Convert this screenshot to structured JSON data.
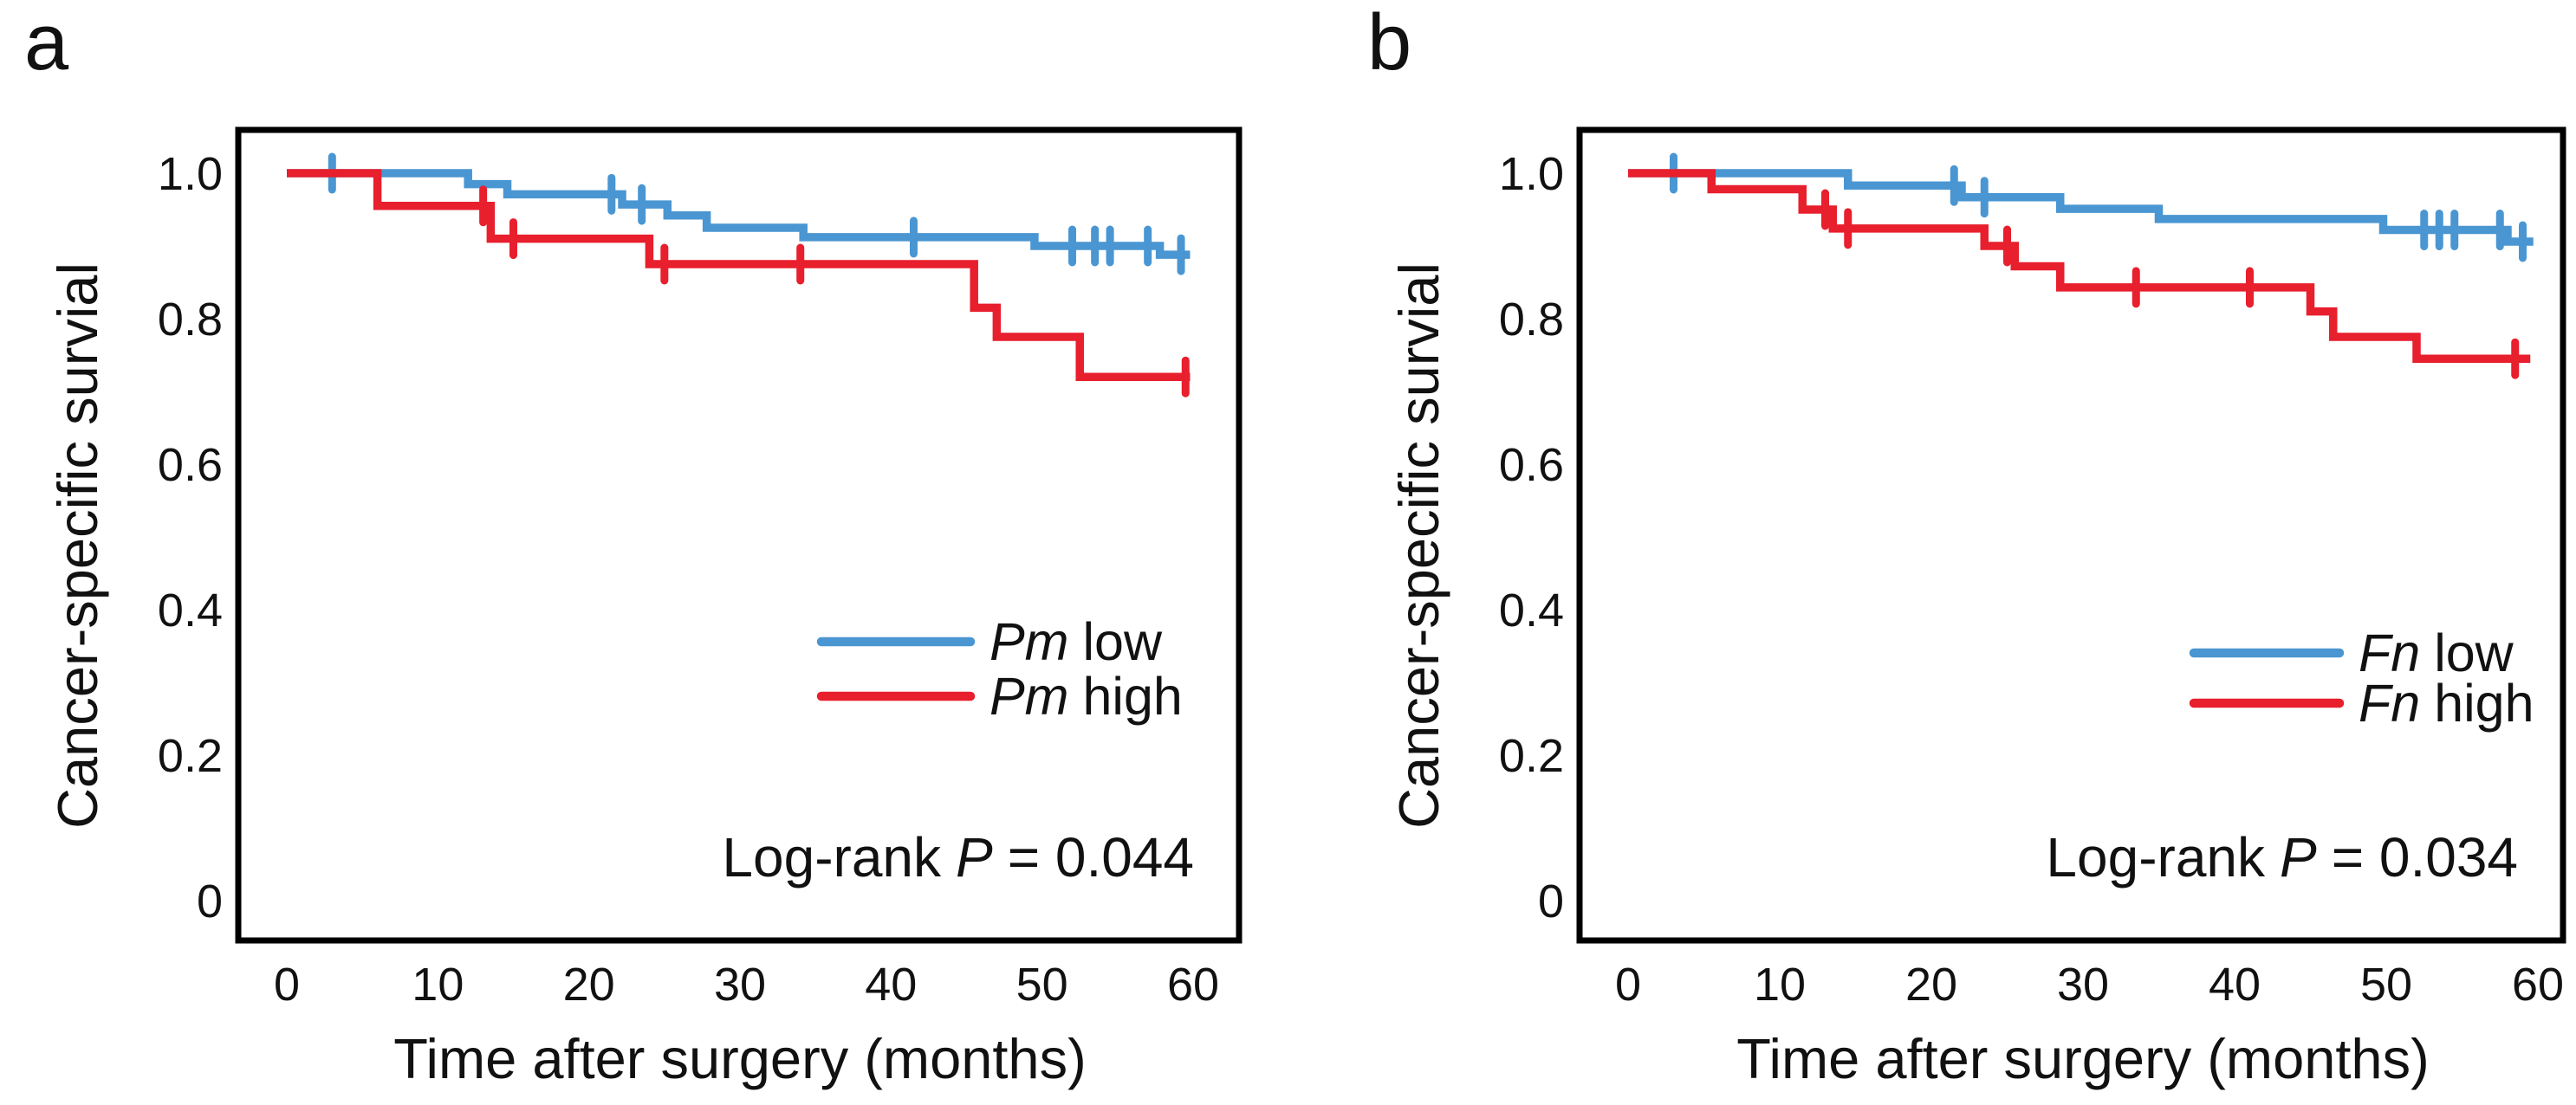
{
  "figure": {
    "colors": {
      "low_series": "#4a96d2",
      "high_series": "#e81f2d",
      "axis": "#000000",
      "text": "#111111",
      "background": "#ffffff"
    }
  },
  "chart_data": [
    {
      "type": "line",
      "subtype": "kaplan-meier-step",
      "panel_letter": "a",
      "title": "",
      "xlabel": "Time after surgery (months)",
      "ylabel": "Cancer-specific survial",
      "xlim": [
        0,
        60
      ],
      "ylim": [
        0,
        1.05
      ],
      "grid": false,
      "x_ticks": [
        "0",
        "10",
        "20",
        "30",
        "40",
        "50",
        "60"
      ],
      "x_tick_values": [
        0,
        10,
        20,
        30,
        40,
        50,
        60
      ],
      "y_tick_labels": [
        "1.0",
        "0.8",
        "0.6",
        "0.4",
        "0.2",
        "0"
      ],
      "y_tick_values": [
        1.0,
        0.8,
        0.6,
        0.4,
        0.2,
        0
      ],
      "annotation": {
        "prefix": "Log-rank",
        "p_symbol": "P",
        "value": "= 0.044"
      },
      "legend_position": "inside-right-middle",
      "legend": [
        {
          "gene": "Pm",
          "level": "low",
          "color_key": "low_series"
        },
        {
          "gene": "Pm",
          "level": "high",
          "color_key": "high_series"
        }
      ],
      "series": [
        {
          "name": "Pm low",
          "color_key": "low_series",
          "steps": [
            [
              0,
              1.0
            ],
            [
              12,
              0.985
            ],
            [
              14.6,
              0.971
            ],
            [
              22.2,
              0.957
            ],
            [
              25.2,
              0.942
            ],
            [
              27.8,
              0.925
            ],
            [
              34.2,
              0.912
            ],
            [
              49.5,
              0.9
            ],
            [
              57.8,
              0.888
            ]
          ],
          "censors": [
            [
              3,
              1.0
            ],
            [
              21.5,
              0.971
            ],
            [
              23.5,
              0.957
            ],
            [
              41.5,
              0.912
            ],
            [
              52,
              0.9
            ],
            [
              53.5,
              0.9
            ],
            [
              54.5,
              0.9
            ],
            [
              57,
              0.9
            ],
            [
              59.2,
              0.888
            ]
          ],
          "end_time": 59.8
        },
        {
          "name": "Pm high",
          "color_key": "high_series",
          "steps": [
            [
              0,
              1.0
            ],
            [
              6,
              0.955
            ],
            [
              13.5,
              0.91
            ],
            [
              24,
              0.875
            ],
            [
              45.5,
              0.815
            ],
            [
              47,
              0.775
            ],
            [
              52.5,
              0.72
            ]
          ],
          "censors": [
            [
              13,
              0.955
            ],
            [
              15,
              0.91
            ],
            [
              25,
              0.875
            ],
            [
              34,
              0.875
            ],
            [
              59.5,
              0.72
            ]
          ],
          "end_time": 59.8
        }
      ]
    },
    {
      "type": "line",
      "subtype": "kaplan-meier-step",
      "panel_letter": "b",
      "title": "",
      "xlabel": "Time after surgery (months)",
      "ylabel": "Cancer-specific survial",
      "xlim": [
        0,
        60
      ],
      "ylim": [
        0,
        1.05
      ],
      "grid": false,
      "x_ticks": [
        "0",
        "10",
        "20",
        "30",
        "40",
        "50",
        "60"
      ],
      "x_tick_values": [
        0,
        10,
        20,
        30,
        40,
        50,
        60
      ],
      "y_tick_labels": [
        "1.0",
        "0.8",
        "0.6",
        "0.4",
        "0.2",
        "0"
      ],
      "y_tick_values": [
        1.0,
        0.8,
        0.6,
        0.4,
        0.2,
        0
      ],
      "annotation": {
        "prefix": "Log-rank",
        "p_symbol": "P",
        "value": "= 0.034"
      },
      "legend_position": "inside-right-middle",
      "legend": [
        {
          "gene": "Fn",
          "level": "low",
          "color_key": "low_series"
        },
        {
          "gene": "Fn",
          "level": "high",
          "color_key": "high_series"
        }
      ],
      "series": [
        {
          "name": "Fn low",
          "color_key": "low_series",
          "steps": [
            [
              0,
              1.0
            ],
            [
              14.5,
              0.983
            ],
            [
              22,
              0.967
            ],
            [
              28.5,
              0.951
            ],
            [
              35,
              0.937
            ],
            [
              49.8,
              0.922
            ],
            [
              58,
              0.906
            ]
          ],
          "censors": [
            [
              3,
              1.0
            ],
            [
              21.5,
              0.983
            ],
            [
              23.5,
              0.967
            ],
            [
              52.5,
              0.922
            ],
            [
              53.5,
              0.922
            ],
            [
              54.5,
              0.922
            ],
            [
              57.5,
              0.922
            ],
            [
              59,
              0.906
            ]
          ],
          "end_time": 59.7
        },
        {
          "name": "Fn high",
          "color_key": "high_series",
          "steps": [
            [
              0,
              1.0
            ],
            [
              5.5,
              0.978
            ],
            [
              11.5,
              0.95
            ],
            [
              13.5,
              0.924
            ],
            [
              23.5,
              0.9
            ],
            [
              25.5,
              0.872
            ],
            [
              28.5,
              0.843
            ],
            [
              45,
              0.81
            ],
            [
              46.5,
              0.775
            ],
            [
              52,
              0.745
            ]
          ],
          "censors": [
            [
              13,
              0.95
            ],
            [
              14.5,
              0.924
            ],
            [
              25,
              0.9
            ],
            [
              33.5,
              0.843
            ],
            [
              41,
              0.843
            ],
            [
              58.5,
              0.745
            ]
          ],
          "end_time": 59.5
        }
      ]
    }
  ]
}
